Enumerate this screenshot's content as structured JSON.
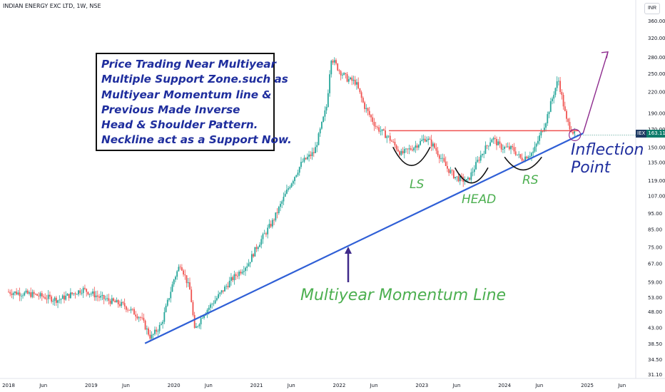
{
  "header": {
    "title": "INDIAN ENERGY EXC LTD, 1W, NSE",
    "currency": "INR"
  },
  "price_label": {
    "ticker": "IEX",
    "value": "163.11"
  },
  "annotations": {
    "note_lines": [
      "Price Trading Near Multiyear",
      "Multiple Support Zone.such as",
      "Multiyear Momentum line &",
      "Previous Made Inverse",
      "Head & Shoulder Pattern.",
      "Neckline act as a Support Now."
    ],
    "left_shoulder": "LS",
    "head": "HEAD",
    "right_shoulder": "RS",
    "inflection_line1": "Inflection",
    "inflection_line2": "Point",
    "momentum_line": "Multiyear Momentum Line"
  },
  "colors": {
    "up_candle": "#26a69a",
    "down_candle": "#ef5350",
    "momentum_line": "#2f5fd6",
    "neckline": "#ef5350",
    "arrow": "#8e2c8e",
    "text_blue": "#1f2e9e",
    "text_green": "#4caf50"
  },
  "chart_data": {
    "type": "candlestick",
    "title": "INDIAN ENERGY EXC LTD, 1W, NSE",
    "y_scale": "log",
    "y_unit": "INR",
    "y_ticks": [
      31.1,
      34.5,
      38.5,
      43.0,
      48.0,
      53.0,
      59.0,
      67.0,
      75.0,
      85.0,
      95.0,
      107.0,
      119.0,
      135.0,
      150.0,
      170.0,
      190.0,
      220.0,
      250.0,
      280.0,
      320.0,
      360.0
    ],
    "x_tick_labels": [
      "2018",
      "Jun",
      "2019",
      "Jun",
      "2020",
      "Jun",
      "2021",
      "Jun",
      "2022",
      "Jun",
      "2023",
      "Jun",
      "2024",
      "Jun",
      "2025",
      "Jun"
    ],
    "x_ticks_year": [
      2018.0,
      2018.42,
      2019.0,
      2019.42,
      2020.0,
      2020.42,
      2021.0,
      2021.42,
      2022.0,
      2022.42,
      2023.0,
      2023.42,
      2024.0,
      2024.42,
      2025.0,
      2025.42
    ],
    "price_path": [
      [
        2018.0,
        55
      ],
      [
        2018.3,
        54
      ],
      [
        2018.6,
        52
      ],
      [
        2018.9,
        56
      ],
      [
        2019.1,
        53
      ],
      [
        2019.4,
        50
      ],
      [
        2019.6,
        46
      ],
      [
        2019.72,
        40
      ],
      [
        2019.85,
        44
      ],
      [
        2020.0,
        60
      ],
      [
        2020.08,
        67
      ],
      [
        2020.2,
        55
      ],
      [
        2020.25,
        42
      ],
      [
        2020.35,
        47
      ],
      [
        2020.5,
        52
      ],
      [
        2020.7,
        60
      ],
      [
        2020.9,
        67
      ],
      [
        2021.0,
        75
      ],
      [
        2021.2,
        90
      ],
      [
        2021.4,
        115
      ],
      [
        2021.55,
        135
      ],
      [
        2021.7,
        145
      ],
      [
        2021.85,
        200
      ],
      [
        2021.9,
        280
      ],
      [
        2022.0,
        255
      ],
      [
        2022.1,
        240
      ],
      [
        2022.2,
        235
      ],
      [
        2022.3,
        200
      ],
      [
        2022.45,
        172
      ],
      [
        2022.6,
        160
      ],
      [
        2022.75,
        143
      ],
      [
        2022.9,
        150
      ],
      [
        2023.05,
        160
      ],
      [
        2023.15,
        150
      ],
      [
        2023.3,
        130
      ],
      [
        2023.4,
        122
      ],
      [
        2023.55,
        118
      ],
      [
        2023.7,
        140
      ],
      [
        2023.85,
        160
      ],
      [
        2023.95,
        150
      ],
      [
        2024.1,
        148
      ],
      [
        2024.2,
        138
      ],
      [
        2024.35,
        145
      ],
      [
        2024.5,
        180
      ],
      [
        2024.6,
        220
      ],
      [
        2024.65,
        240
      ],
      [
        2024.75,
        180
      ],
      [
        2024.85,
        163
      ]
    ],
    "momentum_line": {
      "from": [
        2019.65,
        38.5
      ],
      "to": [
        2024.95,
        165
      ]
    },
    "neckline": {
      "from": [
        2022.6,
        168
      ],
      "to": [
        2024.9,
        168
      ]
    },
    "projection_arrow": {
      "from": [
        2024.95,
        165
      ],
      "to": [
        2025.25,
        290
      ]
    },
    "current_price": 163.11,
    "pattern": "Inverse Head & Shoulder"
  }
}
